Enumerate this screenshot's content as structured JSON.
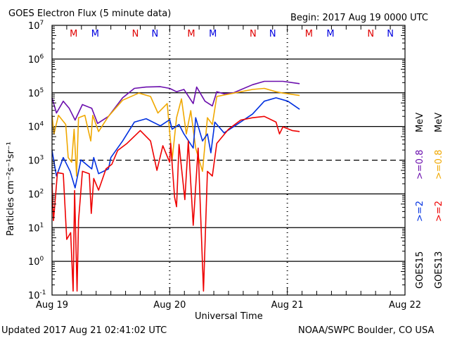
{
  "chart_data": {
    "type": "line",
    "title": "GOES Electron Flux (5 minute data)",
    "begin_label": "Begin: 2017 Aug 19 0000 UTC",
    "xlabel": "Universal Time",
    "ylabel": "Particles cm⁻²s⁻¹sr⁻¹",
    "x_unit": "hours since 2017 Aug 19 0000 UTC",
    "xlim": [
      0,
      72
    ],
    "x_ticks": [
      {
        "hour": 0,
        "label": "Aug 19"
      },
      {
        "hour": 24,
        "label": "Aug 20"
      },
      {
        "hour": 48,
        "label": "Aug 21"
      },
      {
        "hour": 72,
        "label": "Aug 22"
      }
    ],
    "y_scale": "log10",
    "ylim_log10": [
      -1,
      7
    ],
    "y_tick_base": "10",
    "y_tick_exponents": [
      "7",
      "6",
      "5",
      "4",
      "3",
      "2",
      "1",
      "0",
      "-1"
    ],
    "y_values_are": "log10 of flux",
    "threshold_log10": 3,
    "grid": true,
    "markers": [
      {
        "label": "M",
        "color": "#e00000",
        "hour": 4.4
      },
      {
        "label": "M",
        "color": "#0000e0",
        "hour": 8.8
      },
      {
        "label": "N",
        "color": "#e00000",
        "hour": 17
      },
      {
        "label": "N",
        "color": "#0000e0",
        "hour": 21
      },
      {
        "label": "M",
        "color": "#e00000",
        "hour": 28.4
      },
      {
        "label": "M",
        "color": "#0000e0",
        "hour": 32.8
      },
      {
        "label": "N",
        "color": "#e00000",
        "hour": 41
      },
      {
        "label": "N",
        "color": "#0000e0",
        "hour": 45
      },
      {
        "label": "M",
        "color": "#e00000",
        "hour": 52.4
      },
      {
        "label": "M",
        "color": "#0000e0",
        "hour": 56.8
      },
      {
        "label": "N",
        "color": "#e00000",
        "hour": 65
      },
      {
        "label": "N",
        "color": "#0000e0",
        "hour": 69
      }
    ],
    "legend": [
      {
        "satellite": "GOES15",
        "entries": [
          {
            "label": ">=2",
            "color": "#0030e0"
          },
          {
            "label": ">=0.8",
            "color": "#6a0dad"
          }
        ],
        "unit": "MeV"
      },
      {
        "satellite": "GOES13",
        "entries": [
          {
            "label": ">=2",
            "color": "#ee0000"
          },
          {
            "label": ">=0.8",
            "color": "#f0a800"
          }
        ],
        "unit": "MeV"
      }
    ],
    "series": [
      {
        "name": "GOES15 >=0.8 MeV",
        "color": "#6a0dad",
        "points": [
          [
            0,
            4.85
          ],
          [
            0.9,
            4.4
          ],
          [
            2.3,
            4.75
          ],
          [
            3.5,
            4.54
          ],
          [
            4.7,
            4.19
          ],
          [
            6.2,
            4.65
          ],
          [
            8.1,
            4.54
          ],
          [
            9.3,
            4.09
          ],
          [
            11.5,
            4.3
          ],
          [
            14.4,
            4.85
          ],
          [
            16.8,
            5.13
          ],
          [
            19.2,
            5.17
          ],
          [
            22.1,
            5.18
          ],
          [
            24,
            5.13
          ],
          [
            25.4,
            5.03
          ],
          [
            26.9,
            5.1
          ],
          [
            28.8,
            4.68
          ],
          [
            29.5,
            5.17
          ],
          [
            31.2,
            4.75
          ],
          [
            32.7,
            4.61
          ],
          [
            33.6,
            5.03
          ],
          [
            35.1,
            4.97
          ],
          [
            37,
            5.0
          ],
          [
            40.9,
            5.24
          ],
          [
            43.3,
            5.34
          ],
          [
            47.1,
            5.34
          ],
          [
            50.5,
            5.27
          ]
        ]
      },
      {
        "name": "GOES13 >=0.8 MeV",
        "color": "#f0a800",
        "points": [
          [
            0,
            4.33
          ],
          [
            0.4,
            3.78
          ],
          [
            1.3,
            4.33
          ],
          [
            2.8,
            4.06
          ],
          [
            3.3,
            3.08
          ],
          [
            4,
            2.94
          ],
          [
            4.5,
            3.92
          ],
          [
            5,
            2.53
          ],
          [
            5.4,
            4.26
          ],
          [
            6.7,
            4.33
          ],
          [
            7.9,
            3.57
          ],
          [
            8.3,
            4.33
          ],
          [
            9.5,
            3.85
          ],
          [
            11.5,
            4.3
          ],
          [
            14.4,
            4.78
          ],
          [
            17.7,
            4.99
          ],
          [
            20.1,
            4.89
          ],
          [
            21.6,
            4.4
          ],
          [
            23.5,
            4.68
          ],
          [
            24.5,
            3.01
          ],
          [
            25.4,
            4.26
          ],
          [
            26.4,
            4.82
          ],
          [
            27.4,
            3.78
          ],
          [
            28.3,
            4.47
          ],
          [
            29.3,
            3.36
          ],
          [
            30.7,
            2.67
          ],
          [
            31.7,
            4.26
          ],
          [
            32.7,
            4.06
          ],
          [
            33.6,
            4.89
          ],
          [
            36,
            4.96
          ],
          [
            40.9,
            5.1
          ],
          [
            43.3,
            5.13
          ],
          [
            45.7,
            5.03
          ],
          [
            47.1,
            4.99
          ],
          [
            50.5,
            4.92
          ]
        ]
      },
      {
        "name": "GOES15 >=2 MeV",
        "color": "#0030e0",
        "points": [
          [
            0,
            3.29
          ],
          [
            0.9,
            2.53
          ],
          [
            2.3,
            3.08
          ],
          [
            3.7,
            2.67
          ],
          [
            4.7,
            2.18
          ],
          [
            5.9,
            3.01
          ],
          [
            8.1,
            2.74
          ],
          [
            8.5,
            3.08
          ],
          [
            9.5,
            2.6
          ],
          [
            11.5,
            2.74
          ],
          [
            12,
            3.08
          ],
          [
            14.4,
            3.57
          ],
          [
            16.8,
            4.13
          ],
          [
            19.2,
            4.23
          ],
          [
            22.1,
            4.02
          ],
          [
            24,
            4.2
          ],
          [
            24.5,
            3.92
          ],
          [
            25.9,
            4.06
          ],
          [
            26.9,
            3.78
          ],
          [
            28.8,
            3.36
          ],
          [
            29.3,
            4.26
          ],
          [
            30.7,
            3.57
          ],
          [
            31.7,
            3.78
          ],
          [
            32.4,
            3.22
          ],
          [
            33.2,
            4.13
          ],
          [
            35.1,
            3.81
          ],
          [
            37,
            3.99
          ],
          [
            40.9,
            4.37
          ],
          [
            43.3,
            4.75
          ],
          [
            45.7,
            4.85
          ],
          [
            48.1,
            4.75
          ],
          [
            50.5,
            4.51
          ]
        ]
      },
      {
        "name": "GOES13 >=2 MeV",
        "color": "#ee0000",
        "points": [
          [
            0,
            2.32
          ],
          [
            0.3,
            1.21
          ],
          [
            1.1,
            2.63
          ],
          [
            2.3,
            2.6
          ],
          [
            3,
            0.65
          ],
          [
            3.8,
            0.85
          ],
          [
            4.3,
            -0.88
          ],
          [
            4.6,
            2.1
          ],
          [
            5.1,
            -0.88
          ],
          [
            5.4,
            1.21
          ],
          [
            6.2,
            2.67
          ],
          [
            7.6,
            2.6
          ],
          [
            8,
            1.42
          ],
          [
            8.5,
            2.46
          ],
          [
            9.5,
            2.11
          ],
          [
            11,
            2.74
          ],
          [
            12.2,
            2.88
          ],
          [
            13.4,
            3.29
          ],
          [
            15.3,
            3.5
          ],
          [
            18,
            3.88
          ],
          [
            20.1,
            3.57
          ],
          [
            21.4,
            2.7
          ],
          [
            22.6,
            3.43
          ],
          [
            24,
            2.94
          ],
          [
            24.2,
            3.5
          ],
          [
            25,
            1.9
          ],
          [
            25.4,
            1.62
          ],
          [
            25.9,
            3.47
          ],
          [
            27.1,
            1.83
          ],
          [
            27.8,
            3.57
          ],
          [
            28.8,
            1.07
          ],
          [
            29.8,
            3.36
          ],
          [
            30.9,
            -0.88
          ],
          [
            31.7,
            2.67
          ],
          [
            32.7,
            2.53
          ],
          [
            33.6,
            3.5
          ],
          [
            36,
            3.92
          ],
          [
            38.5,
            4.19
          ],
          [
            40.9,
            4.26
          ],
          [
            43.3,
            4.3
          ],
          [
            45.7,
            4.13
          ],
          [
            46.4,
            3.78
          ],
          [
            47.1,
            3.99
          ],
          [
            49,
            3.88
          ],
          [
            50.5,
            3.85
          ]
        ]
      }
    ]
  },
  "footer": {
    "updated": "Updated 2017 Aug 21 02:41:02 UTC",
    "source": "NOAA/SWPC Boulder, CO USA"
  }
}
